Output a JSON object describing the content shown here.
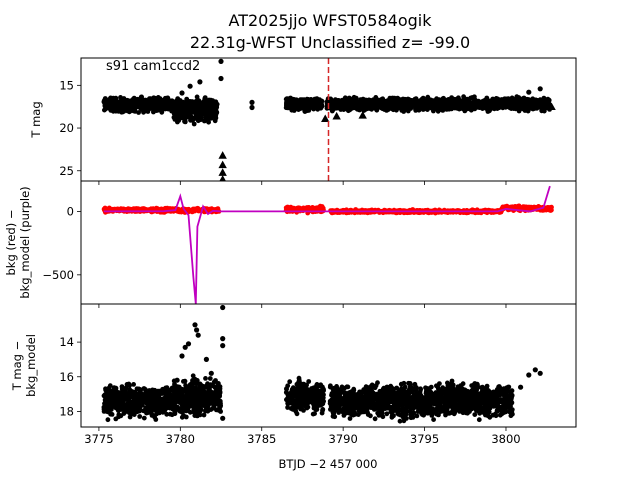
{
  "figure": {
    "title_line1": "AT2025jjo  WFST0584ogik",
    "title_line2": "22.31g-WFST Unclassified z= -99.0",
    "xlabel": "BTJD −2 457 000",
    "annotation": "s91 cam1ccd2"
  },
  "chart_data": [
    {
      "type": "scatter",
      "panel": "top",
      "ylabel": "T mag",
      "y_inverted": true,
      "ylim": [
        26.2,
        11.8
      ],
      "xlim": [
        3773.9,
        3804.3
      ],
      "x_ticks": [
        3775,
        3780,
        3785,
        3790,
        3795,
        3800
      ],
      "x_tick_labels": [],
      "y_ticks": [
        15,
        20,
        25
      ],
      "y_tick_labels": [
        "15",
        "20",
        "25"
      ],
      "vline": {
        "x": 3789.1,
        "color": "#d62728",
        "style": "dashed"
      },
      "series": [
        {
          "marker": "circle",
          "color": "#000000",
          "segments": [
            {
              "x0": 3775.3,
              "x1": 3779.6,
              "ymid": 17.3,
              "spread": 1.1
            },
            {
              "x0": 3779.6,
              "x1": 3782.3,
              "ymid": 17.8,
              "spread": 2.0
            },
            {
              "x0": 3786.5,
              "x1": 3788.7,
              "ymid": 17.2,
              "spread": 1.0
            },
            {
              "x0": 3789.0,
              "x1": 3802.7,
              "ymid": 17.2,
              "spread": 1.0
            }
          ],
          "outliers": [
            [
              3780.1,
              15.9
            ],
            [
              3780.6,
              15.1
            ],
            [
              3781.2,
              14.6
            ],
            [
              3782.5,
              12.2
            ],
            [
              3782.5,
              14.2
            ],
            [
              3784.4,
              17.0
            ],
            [
              3784.4,
              17.6
            ],
            [
              3801.4,
              15.8
            ],
            [
              3802.1,
              15.4
            ]
          ]
        },
        {
          "marker": "triangle",
          "color": "#000000",
          "points": [
            [
              3782.6,
              23.2
            ],
            [
              3782.6,
              24.3
            ],
            [
              3782.6,
              25.2
            ],
            [
              3782.6,
              26.0
            ],
            [
              3788.9,
              18.9
            ],
            [
              3789.6,
              18.6
            ],
            [
              3791.2,
              18.5
            ],
            [
              3802.8,
              17.5
            ]
          ]
        }
      ]
    },
    {
      "type": "line",
      "panel": "middle",
      "ylabel": "bkg (red) −\nbkg_model (purple)",
      "ylim": [
        -730,
        240
      ],
      "xlim": [
        3773.9,
        3804.3
      ],
      "x_ticks": [
        3775,
        3780,
        3785,
        3790,
        3795,
        3800
      ],
      "x_tick_labels": [],
      "y_ticks": [
        0,
        -500
      ],
      "y_tick_labels": [
        "0",
        "−500"
      ],
      "series": [
        {
          "name": "bkg",
          "color": "#ff0000",
          "marker": "circle",
          "segments": [
            {
              "x0": 3775.3,
              "x1": 3782.4,
              "y": 10,
              "spread": 20
            },
            {
              "x0": 3786.5,
              "x1": 3788.8,
              "y": 15,
              "spread": 30
            },
            {
              "x0": 3789.2,
              "x1": 3799.7,
              "y": 0,
              "spread": 16
            },
            {
              "x0": 3799.7,
              "x1": 3802.8,
              "y": 25,
              "spread": 25
            }
          ]
        },
        {
          "name": "bkg_model",
          "color": "#c000c0",
          "points": [
            [
              3775.3,
              0
            ],
            [
              3779.0,
              2
            ],
            [
              3779.7,
              10
            ],
            [
              3780.0,
              120
            ],
            [
              3780.2,
              20
            ],
            [
              3780.5,
              -30
            ],
            [
              3780.8,
              -520
            ],
            [
              3780.95,
              -730
            ],
            [
              3781.05,
              -120
            ],
            [
              3781.4,
              40
            ],
            [
              3781.7,
              -20
            ],
            [
              3782.0,
              5
            ],
            [
              3782.5,
              0
            ],
            [
              3786.5,
              0
            ],
            [
              3799.5,
              0
            ],
            [
              3800.0,
              20
            ],
            [
              3801.5,
              0
            ],
            [
              3802.3,
              30
            ],
            [
              3802.7,
              200
            ]
          ]
        }
      ]
    },
    {
      "type": "scatter",
      "panel": "bottom",
      "ylabel": "T mag −\nbkg_model",
      "y_inverted": true,
      "ylim": [
        18.9,
        11.8
      ],
      "xlim": [
        3773.9,
        3804.3
      ],
      "x_ticks": [
        3775,
        3780,
        3785,
        3790,
        3795,
        3800
      ],
      "x_tick_labels": [
        "3775",
        "3780",
        "3785",
        "3790",
        "3795",
        "3800"
      ],
      "y_ticks": [
        14,
        16,
        18
      ],
      "y_tick_labels": [
        "14",
        "16",
        "18"
      ],
      "series": [
        {
          "marker": "circle",
          "color": "#000000",
          "segments": [
            {
              "x0": 3775.3,
              "x1": 3779.6,
              "ymid": 17.4,
              "spread": 1.2
            },
            {
              "x0": 3779.6,
              "x1": 3782.5,
              "ymid": 17.2,
              "spread": 1.4
            },
            {
              "x0": 3786.5,
              "x1": 3788.8,
              "ymid": 17.2,
              "spread": 1.2
            },
            {
              "x0": 3789.2,
              "x1": 3800.4,
              "ymid": 17.4,
              "spread": 1.3
            }
          ],
          "outliers": [
            [
              3779.8,
              16.2
            ],
            [
              3780.1,
              14.8
            ],
            [
              3780.3,
              14.3
            ],
            [
              3780.5,
              14.1
            ],
            [
              3780.9,
              13.0
            ],
            [
              3781.0,
              13.3
            ],
            [
              3781.1,
              13.6
            ],
            [
              3781.6,
              15.0
            ],
            [
              3781.9,
              15.8
            ],
            [
              3782.6,
              12.0
            ],
            [
              3782.6,
              13.8
            ],
            [
              3782.6,
              14.2
            ],
            [
              3782.6,
              18.4
            ],
            [
              3800.9,
              16.6
            ],
            [
              3801.4,
              15.9
            ],
            [
              3801.8,
              15.6
            ],
            [
              3802.1,
              15.8
            ]
          ]
        }
      ]
    }
  ]
}
